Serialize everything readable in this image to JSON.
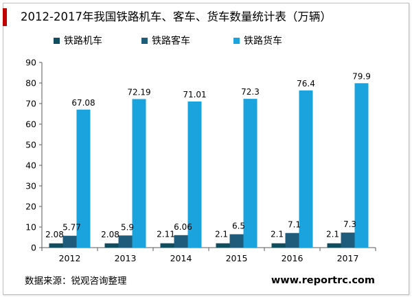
{
  "title": "2012-2017年我国铁路机车、客车、货车数量统计表（万辆）",
  "footer": {
    "source": "数据来源：锐观咨询整理",
    "site": "www.reportrc.com"
  },
  "colors": {
    "accent": "#c00000",
    "series": [
      "#0f4d5f",
      "#1f5b7a",
      "#1aa3dc"
    ]
  },
  "chart_data": {
    "type": "bar",
    "categories": [
      "2012",
      "2013",
      "2014",
      "2015",
      "2016",
      "2017"
    ],
    "series": [
      {
        "name": "铁路机车",
        "values": [
          2.08,
          2.08,
          2.11,
          2.1,
          2.1,
          2.1
        ],
        "labels": [
          "2.08",
          "2.08",
          "2.11",
          "2.1",
          "2.1",
          "2.1"
        ]
      },
      {
        "name": "铁路客车",
        "values": [
          5.77,
          5.9,
          6.06,
          6.5,
          7.1,
          7.3
        ],
        "labels": [
          "5.77",
          "5.9",
          "6.06",
          "6.5",
          "7.1",
          "7.3"
        ]
      },
      {
        "name": "铁路货车",
        "values": [
          67.08,
          72.19,
          71.01,
          72.3,
          76.4,
          79.9
        ],
        "labels": [
          "67.08",
          "72.19",
          "71.01",
          "72.3",
          "76.4",
          "79.9"
        ]
      }
    ],
    "ylim": [
      0,
      90
    ],
    "yticks": [
      "0",
      "10",
      "20",
      "30",
      "40",
      "50",
      "60",
      "70",
      "80",
      "90"
    ],
    "grid": false,
    "legend_position": "top"
  }
}
